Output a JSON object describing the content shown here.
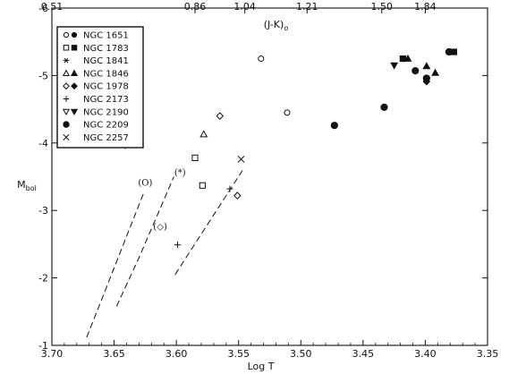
{
  "chart_data": {
    "type": "scatter",
    "xlabel": "Log T",
    "ylabel": "Mbol",
    "top_axis_label": "(J-K)o",
    "xlim": [
      3.7,
      3.35
    ],
    "ylim": [
      -1,
      -6
    ],
    "x_ticks": [
      "3.70",
      "3.65",
      "3.60",
      "3.55",
      "3.50",
      "3.45",
      "3.40",
      "3.35"
    ],
    "x_tick_values": [
      3.7,
      3.65,
      3.6,
      3.55,
      3.5,
      3.45,
      3.4,
      3.35
    ],
    "y_ticks": [
      "-1",
      "-2",
      "-3",
      "-4",
      "-5",
      "-6"
    ],
    "y_tick_values": [
      -1,
      -2,
      -3,
      -4,
      -5,
      -6
    ],
    "top_ticks": [
      "0.51",
      "0.86",
      "1.04",
      "1.21",
      "1.50",
      "1.84"
    ],
    "top_tick_values": [
      3.7,
      3.585,
      3.545,
      3.495,
      3.435,
      3.4
    ],
    "grid": false,
    "legend_position": "top-left",
    "legend": [
      {
        "label": "NGC 1651",
        "symbols": [
          "circle-open",
          "circle-filled"
        ]
      },
      {
        "label": "NGC 1783",
        "symbols": [
          "square-open",
          "square-filled"
        ]
      },
      {
        "label": "NGC 1841",
        "symbols": [
          "asterisk"
        ]
      },
      {
        "label": "NGC 1846",
        "symbols": [
          "triangle-up-open",
          "triangle-up-filled"
        ]
      },
      {
        "label": "NGC 1978",
        "symbols": [
          "diamond-open",
          "diamond-filled"
        ]
      },
      {
        "label": "NGC 2173",
        "symbols": [
          "plus"
        ]
      },
      {
        "label": "NGC 2190",
        "symbols": [
          "triangle-down-open",
          "triangle-down-filled"
        ]
      },
      {
        "label": "NGC 2209",
        "symbols": [
          "dot-filled"
        ]
      },
      {
        "label": "NGC 2257",
        "symbols": [
          "cross"
        ]
      }
    ],
    "points": [
      {
        "x": 3.532,
        "y": -5.25,
        "symbol": "circle-open"
      },
      {
        "x": 3.511,
        "y": -4.45,
        "symbol": "circle-open"
      },
      {
        "x": 3.585,
        "y": -3.78,
        "symbol": "square-open"
      },
      {
        "x": 3.579,
        "y": -3.37,
        "symbol": "square-open"
      },
      {
        "x": 3.578,
        "y": -4.13,
        "symbol": "triangle-up-open"
      },
      {
        "x": 3.565,
        "y": -4.4,
        "symbol": "diamond-open"
      },
      {
        "x": 3.551,
        "y": -3.22,
        "symbol": "diamond-open"
      },
      {
        "x": 3.548,
        "y": -3.76,
        "symbol": "cross"
      },
      {
        "x": 3.557,
        "y": -3.32,
        "symbol": "plus"
      },
      {
        "x": 3.599,
        "y": -2.49,
        "symbol": "plus"
      },
      {
        "x": 3.473,
        "y": -4.26,
        "symbol": "dot-filled"
      },
      {
        "x": 3.433,
        "y": -4.53,
        "symbol": "dot-filled"
      },
      {
        "x": 3.408,
        "y": -5.07,
        "symbol": "dot-filled"
      },
      {
        "x": 3.399,
        "y": -4.96,
        "symbol": "dot-filled"
      },
      {
        "x": 3.381,
        "y": -5.35,
        "symbol": "dot-filled"
      },
      {
        "x": 3.418,
        "y": -5.25,
        "symbol": "square-filled"
      },
      {
        "x": 3.377,
        "y": -5.35,
        "symbol": "square-filled"
      },
      {
        "x": 3.425,
        "y": -5.15,
        "symbol": "triangle-down-filled"
      },
      {
        "x": 3.414,
        "y": -5.25,
        "symbol": "triangle-up-filled"
      },
      {
        "x": 3.399,
        "y": -5.14,
        "symbol": "triangle-up-filled"
      },
      {
        "x": 3.392,
        "y": -5.04,
        "symbol": "triangle-up-filled"
      },
      {
        "x": 3.399,
        "y": -4.91,
        "symbol": "diamond-filled"
      }
    ],
    "error_bar": {
      "x": 3.641,
      "y": -4.03,
      "xerr": 0.008,
      "yerr": 0.12
    },
    "tracks": [
      {
        "name": "(Ο)",
        "points": [
          [
            3.672,
            -1.12
          ],
          [
            3.626,
            -3.27
          ]
        ]
      },
      {
        "name": "(*)",
        "points": [
          [
            3.648,
            -1.58
          ],
          [
            3.63,
            -2.3
          ],
          [
            3.602,
            -3.5
          ]
        ]
      },
      {
        "name": "(◇)",
        "points": [
          [
            3.601,
            -2.05
          ],
          [
            3.547,
            -3.59
          ]
        ]
      }
    ],
    "annotations": [
      {
        "text": "(Ο)",
        "x": 3.625,
        "y": -3.37
      },
      {
        "text": "(*)",
        "x": 3.597,
        "y": -3.52
      },
      {
        "text": "(◇)",
        "x": 3.613,
        "y": -2.72
      }
    ]
  }
}
